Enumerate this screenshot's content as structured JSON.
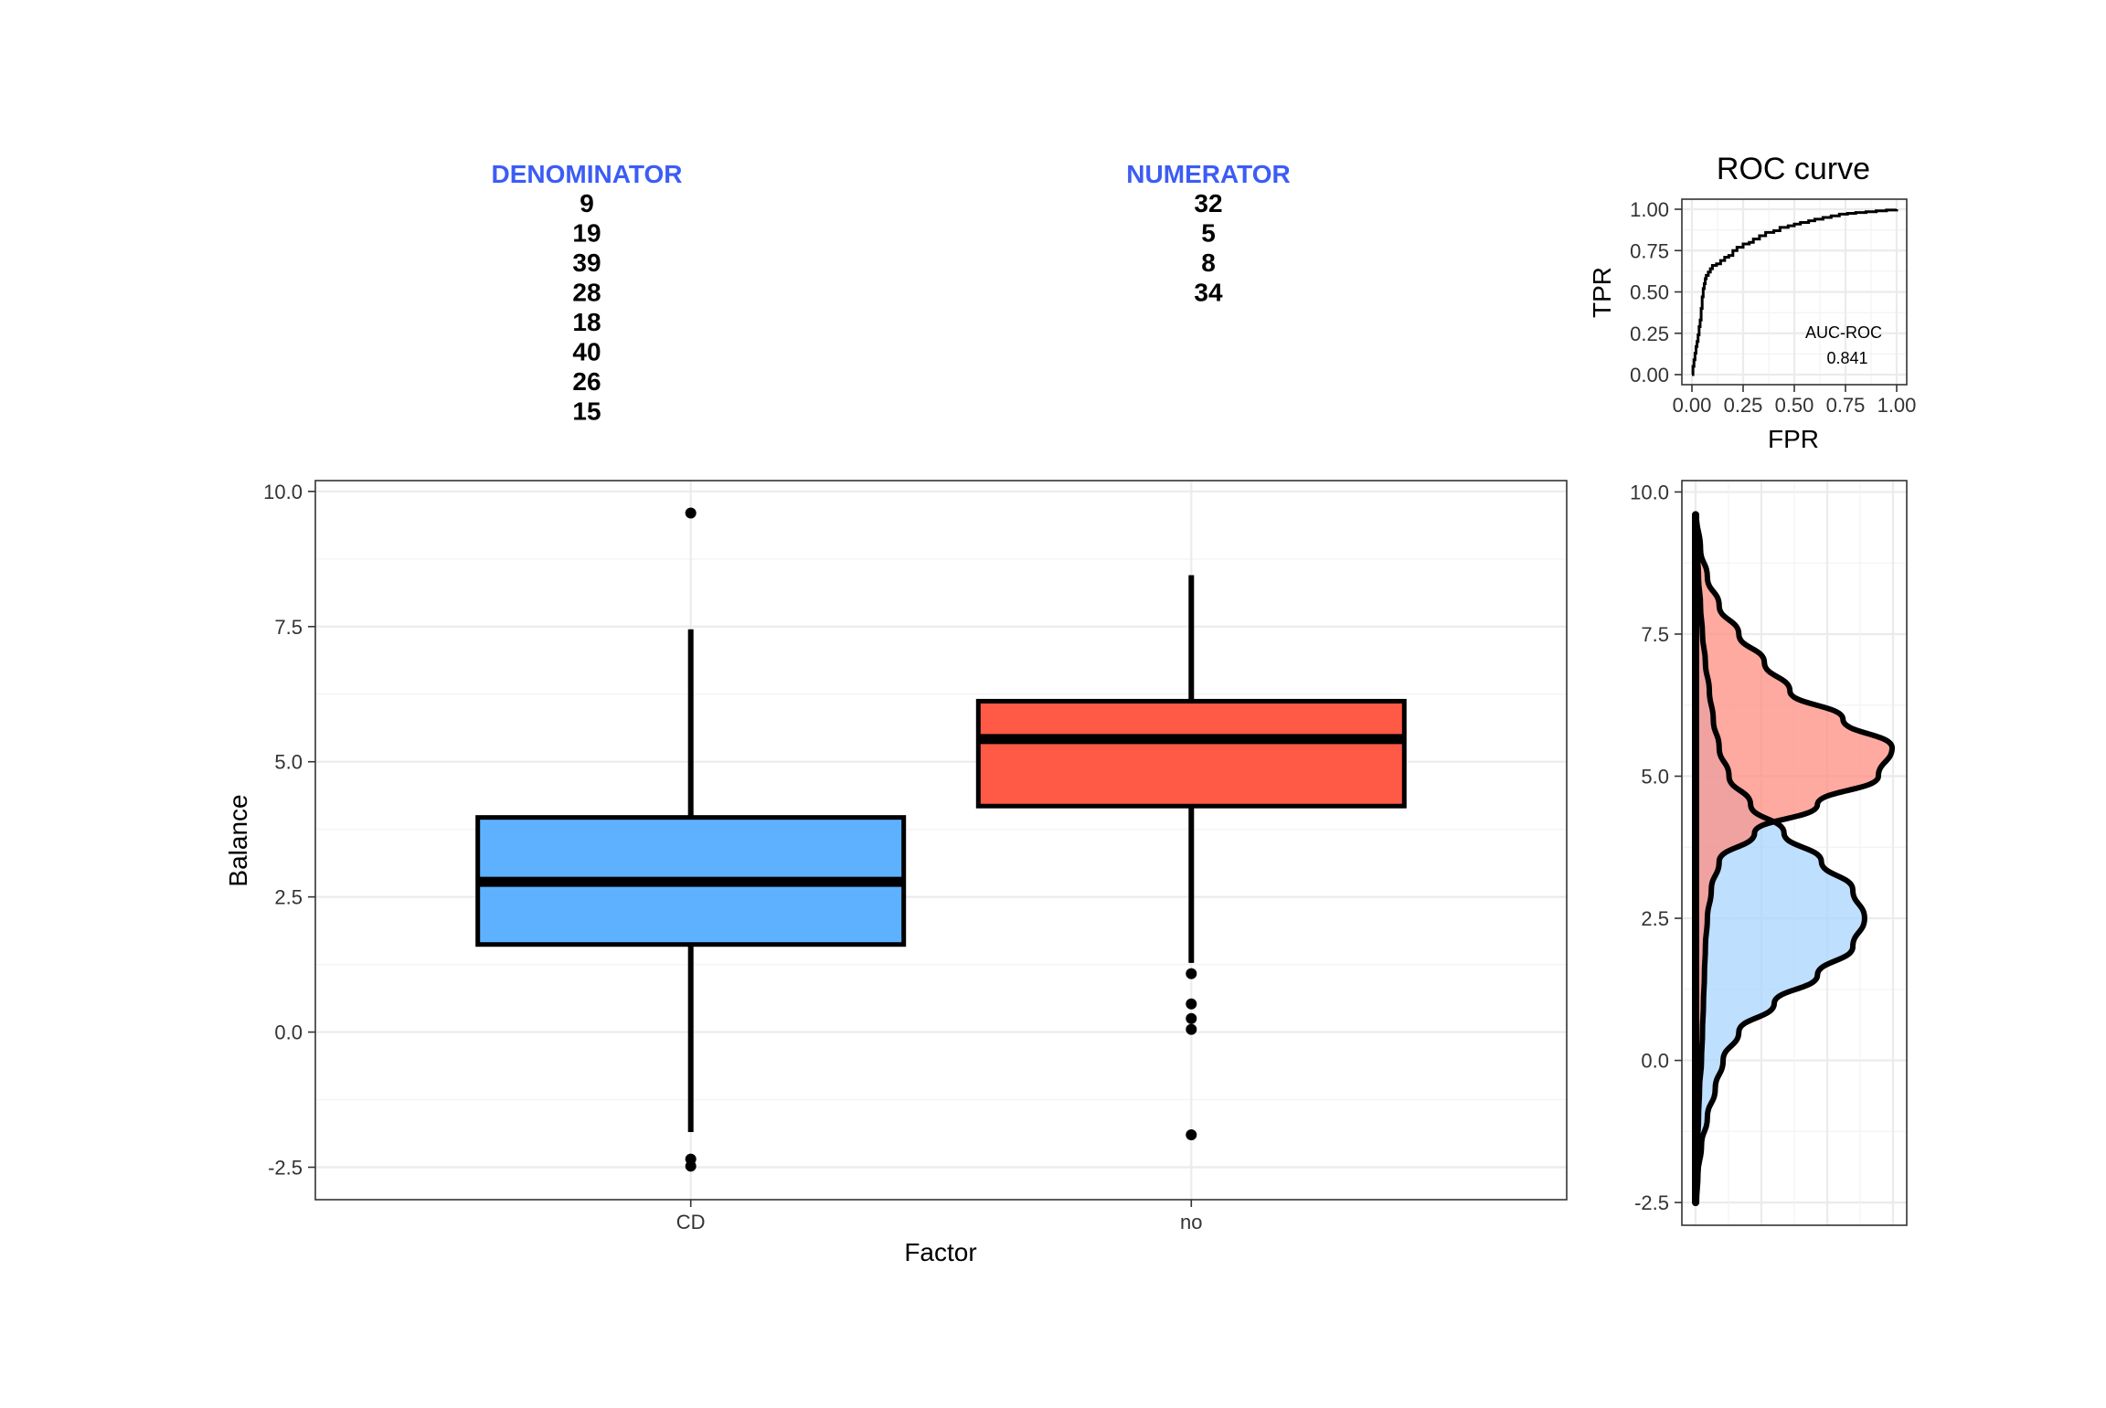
{
  "colors": {
    "denominator": "#5EB1FF",
    "numerator": "#FF5A45",
    "header": "#3C5CF5"
  },
  "taxa": {
    "denominator_title": "DENOMINATOR",
    "denominator_items": [
      "9",
      "19",
      "39",
      "28",
      "18",
      "40",
      "26",
      "15"
    ],
    "numerator_title": "NUMERATOR",
    "numerator_items": [
      "32",
      "5",
      "8",
      "34"
    ]
  },
  "chart_data": [
    {
      "type": "box",
      "title": "",
      "xlabel": "Factor",
      "ylabel": "Balance",
      "categories": [
        "CD",
        "no"
      ],
      "ylim": [
        -3.1,
        10.2
      ],
      "yticks": [
        -2.5,
        0.0,
        2.5,
        5.0,
        7.5,
        10.0
      ],
      "ytick_labels": [
        "-2.5",
        "0.0",
        "2.5",
        "5.0",
        "7.5",
        "10.0"
      ],
      "grid": true,
      "series": [
        {
          "category": "CD",
          "color": "#5EB1FF",
          "whisker_low": -1.85,
          "q1": 1.62,
          "median": 2.78,
          "q3": 3.97,
          "whisker_high": 7.45,
          "outliers": [
            9.6,
            -2.35,
            -2.48
          ]
        },
        {
          "category": "no",
          "color": "#FF5A45",
          "whisker_low": 1.28,
          "q1": 4.18,
          "median": 5.42,
          "q3": 6.12,
          "whisker_high": 8.45,
          "outliers": [
            1.08,
            0.52,
            0.25,
            0.05,
            -1.9
          ]
        }
      ]
    },
    {
      "type": "line",
      "title": "ROC curve",
      "xlabel": "FPR",
      "ylabel": "TPR",
      "xlim": [
        0,
        1
      ],
      "ylim": [
        0,
        1
      ],
      "ticks": [
        0.0,
        0.25,
        0.5,
        0.75,
        1.0
      ],
      "tick_labels": [
        "0.00",
        "0.25",
        "0.50",
        "0.75",
        "1.00"
      ],
      "annotation_label": "AUC-ROC",
      "annotation_value": "0.841",
      "x": [
        0.0,
        0.005,
        0.01,
        0.015,
        0.02,
        0.025,
        0.03,
        0.035,
        0.04,
        0.045,
        0.05,
        0.055,
        0.06,
        0.065,
        0.07,
        0.08,
        0.09,
        0.1,
        0.12,
        0.14,
        0.16,
        0.18,
        0.2,
        0.22,
        0.25,
        0.28,
        0.3,
        0.33,
        0.36,
        0.4,
        0.43,
        0.47,
        0.5,
        0.53,
        0.57,
        0.6,
        0.64,
        0.68,
        0.72,
        0.76,
        0.8,
        0.85,
        0.9,
        0.95,
        1.0
      ],
      "y": [
        0.0,
        0.05,
        0.09,
        0.13,
        0.17,
        0.2,
        0.24,
        0.29,
        0.33,
        0.4,
        0.47,
        0.52,
        0.55,
        0.58,
        0.6,
        0.62,
        0.64,
        0.66,
        0.67,
        0.69,
        0.71,
        0.72,
        0.75,
        0.77,
        0.79,
        0.8,
        0.82,
        0.84,
        0.86,
        0.87,
        0.89,
        0.9,
        0.91,
        0.92,
        0.93,
        0.94,
        0.95,
        0.96,
        0.97,
        0.975,
        0.98,
        0.985,
        0.99,
        0.995,
        1.0
      ]
    },
    {
      "type": "area",
      "title": "",
      "ylim": [
        -2.9,
        10.2
      ],
      "yticks": [
        -2.5,
        0.0,
        2.5,
        5.0,
        7.5,
        10.0
      ],
      "ytick_labels": [
        "-2.5",
        "0.0",
        "2.5",
        "5.0",
        "7.5",
        "10.0"
      ],
      "series": [
        {
          "color": "#A9D4FF",
          "y": [
            -2.5,
            -2.0,
            -1.5,
            -1.0,
            -0.5,
            0.0,
            0.5,
            1.0,
            1.5,
            2.0,
            2.5,
            3.0,
            3.5,
            4.0,
            4.5,
            5.0,
            5.5,
            6.0,
            6.5,
            7.0,
            7.5,
            8.0,
            8.5,
            9.0,
            9.6
          ],
          "density": [
            0.005,
            0.012,
            0.03,
            0.06,
            0.1,
            0.14,
            0.22,
            0.4,
            0.62,
            0.8,
            0.86,
            0.8,
            0.64,
            0.45,
            0.28,
            0.17,
            0.12,
            0.09,
            0.07,
            0.05,
            0.035,
            0.025,
            0.015,
            0.008,
            0.003
          ]
        },
        {
          "color": "#FF8E80",
          "y": [
            -2.5,
            -2.0,
            -1.5,
            -1.0,
            -0.5,
            0.0,
            0.5,
            1.0,
            1.5,
            2.0,
            2.5,
            3.0,
            3.5,
            4.0,
            4.5,
            5.0,
            5.5,
            6.0,
            6.5,
            7.0,
            7.5,
            8.0,
            8.5,
            9.0,
            9.6
          ],
          "density": [
            0.002,
            0.006,
            0.01,
            0.015,
            0.02,
            0.03,
            0.035,
            0.04,
            0.045,
            0.05,
            0.06,
            0.08,
            0.12,
            0.3,
            0.62,
            0.93,
            1.0,
            0.75,
            0.48,
            0.35,
            0.22,
            0.12,
            0.06,
            0.025,
            0.004
          ]
        }
      ]
    }
  ]
}
